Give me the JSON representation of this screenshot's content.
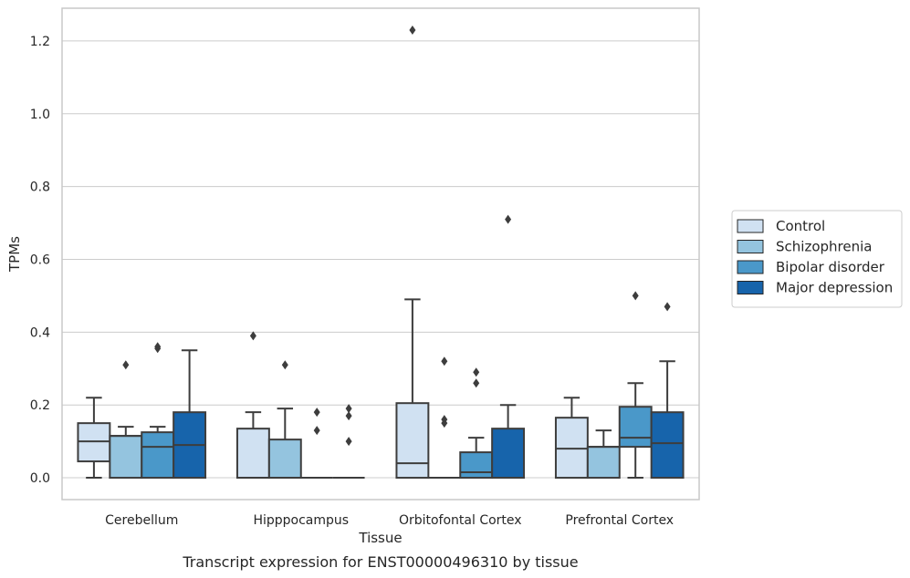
{
  "caption": "Transcript expression for ENST00000496310 by tissue",
  "chart_data": {
    "type": "box",
    "title": "",
    "xlabel": "Tissue",
    "ylabel": "TPMs",
    "ylim": [
      -0.06,
      1.29
    ],
    "yticks": [
      0.0,
      0.2,
      0.4,
      0.6,
      0.8,
      1.0,
      1.2
    ],
    "ytick_labels": [
      "0.0",
      "0.2",
      "0.4",
      "0.6",
      "0.8",
      "1.0",
      "1.2"
    ],
    "grid": "horizontal",
    "legend_position": "right",
    "categories": [
      "Cerebellum",
      "Hipppocampus",
      "Orbitofontal Cortex",
      "Prefrontal Cortex"
    ],
    "series": [
      {
        "name": "Control",
        "color": "#d0e1f2",
        "boxes": [
          {
            "q1": 0.045,
            "median": 0.1,
            "q3": 0.15,
            "whisker_low": 0.0,
            "whisker_high": 0.22,
            "outliers": []
          },
          {
            "q1": 0.0,
            "median": 0.0,
            "q3": 0.135,
            "whisker_low": 0.0,
            "whisker_high": 0.18,
            "outliers": [
              0.39
            ]
          },
          {
            "q1": 0.0,
            "median": 0.04,
            "q3": 0.205,
            "whisker_low": 0.0,
            "whisker_high": 0.49,
            "outliers": [
              1.23
            ]
          },
          {
            "q1": 0.0,
            "median": 0.08,
            "q3": 0.165,
            "whisker_low": 0.0,
            "whisker_high": 0.22,
            "outliers": []
          }
        ]
      },
      {
        "name": "Schizophrenia",
        "color": "#94c4df",
        "boxes": [
          {
            "q1": 0.0,
            "median": 0.115,
            "q3": 0.115,
            "whisker_low": 0.0,
            "whisker_high": 0.14,
            "outliers": [
              0.31
            ]
          },
          {
            "q1": 0.0,
            "median": 0.0,
            "q3": 0.105,
            "whisker_low": 0.0,
            "whisker_high": 0.19,
            "outliers": [
              0.31
            ]
          },
          {
            "q1": 0.0,
            "median": 0.0,
            "q3": 0.0,
            "whisker_low": 0.0,
            "whisker_high": 0.0,
            "outliers": [
              0.32,
              0.16,
              0.15
            ]
          },
          {
            "q1": 0.0,
            "median": 0.085,
            "q3": 0.085,
            "whisker_low": 0.0,
            "whisker_high": 0.13,
            "outliers": []
          }
        ]
      },
      {
        "name": "Bipolar disorder",
        "color": "#4a98c9",
        "boxes": [
          {
            "q1": 0.0,
            "median": 0.085,
            "q3": 0.125,
            "whisker_low": 0.0,
            "whisker_high": 0.14,
            "outliers": [
              0.36,
              0.355
            ]
          },
          {
            "q1": 0.0,
            "median": 0.0,
            "q3": 0.0,
            "whisker_low": 0.0,
            "whisker_high": 0.0,
            "outliers": [
              0.18,
              0.13
            ]
          },
          {
            "q1": 0.0,
            "median": 0.015,
            "q3": 0.07,
            "whisker_low": 0.0,
            "whisker_high": 0.11,
            "outliers": [
              0.29,
              0.26
            ]
          },
          {
            "q1": 0.085,
            "median": 0.11,
            "q3": 0.195,
            "whisker_low": 0.0,
            "whisker_high": 0.26,
            "outliers": [
              0.5
            ]
          }
        ]
      },
      {
        "name": "Major depression",
        "color": "#1764ab",
        "boxes": [
          {
            "q1": 0.0,
            "median": 0.09,
            "q3": 0.18,
            "whisker_low": 0.0,
            "whisker_high": 0.35,
            "outliers": []
          },
          {
            "q1": 0.0,
            "median": 0.0,
            "q3": 0.0,
            "whisker_low": 0.0,
            "whisker_high": 0.0,
            "outliers": [
              0.19,
              0.17,
              0.1
            ]
          },
          {
            "q1": 0.0,
            "median": 0.0,
            "q3": 0.135,
            "whisker_low": 0.0,
            "whisker_high": 0.2,
            "outliers": [
              0.71
            ]
          },
          {
            "q1": 0.0,
            "median": 0.095,
            "q3": 0.18,
            "whisker_low": 0.0,
            "whisker_high": 0.32,
            "outliers": [
              0.47
            ]
          }
        ]
      }
    ],
    "line_color": "#3d3d3d",
    "grid_color": "#cccccc",
    "frame_color": "#c8c8c8"
  }
}
